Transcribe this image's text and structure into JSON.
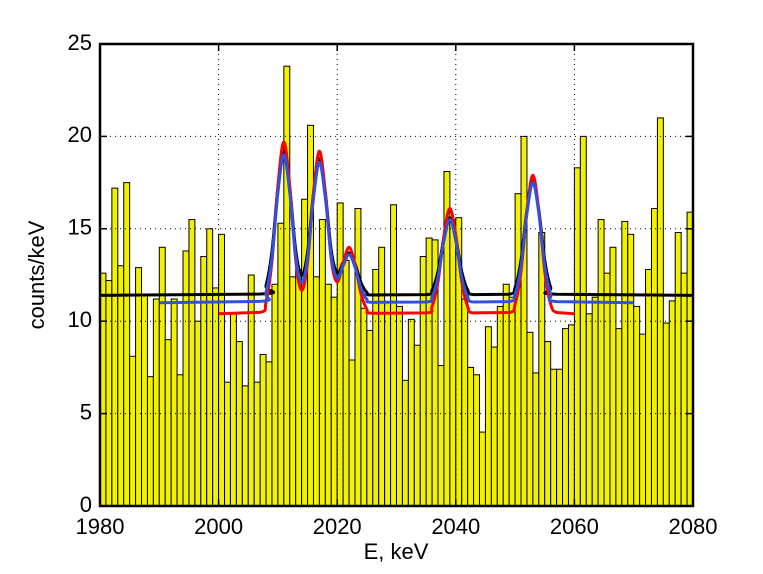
{
  "chart_data": {
    "type": "histogram",
    "xlabel": "E, keV",
    "ylabel": "counts/keV",
    "bins": [
      1980,
      1981,
      1982,
      1983,
      1984,
      1985,
      1986,
      1987,
      1988,
      1989,
      1990,
      1991,
      1992,
      1993,
      1994,
      1995,
      1996,
      1997,
      1998,
      1999,
      2000,
      2001,
      2002,
      2003,
      2004,
      2005,
      2006,
      2007,
      2008,
      2009,
      2010,
      2011,
      2012,
      2013,
      2014,
      2015,
      2016,
      2017,
      2018,
      2019,
      2020,
      2021,
      2022,
      2023,
      2024,
      2025,
      2026,
      2027,
      2028,
      2029,
      2030,
      2031,
      2032,
      2033,
      2034,
      2035,
      2036,
      2037,
      2038,
      2039,
      2040,
      2041,
      2042,
      2043,
      2044,
      2045,
      2046,
      2047,
      2048,
      2049,
      2050,
      2051,
      2052,
      2053,
      2054,
      2055,
      2056,
      2057,
      2058,
      2059,
      2060,
      2061,
      2062,
      2063,
      2064,
      2065,
      2066,
      2067,
      2068,
      2069,
      2070,
      2071,
      2072,
      2073,
      2074,
      2075,
      2076,
      2077,
      2078,
      2079,
      2080
    ],
    "values": [
      12.6,
      12.2,
      17.2,
      13.0,
      17.5,
      8.1,
      12.9,
      11.4,
      7.0,
      11.2,
      14.0,
      9.0,
      11.2,
      7.1,
      13.8,
      15.5,
      10.0,
      13.5,
      15.0,
      11.8,
      14.7,
      6.7,
      10.4,
      8.9,
      6.5,
      12.5,
      6.7,
      8.2,
      7.8,
      12.0,
      15.3,
      23.8,
      12.4,
      12.8,
      16.6,
      20.6,
      12.4,
      15.5,
      12.0,
      11.3,
      16.4,
      13.3,
      7.9,
      16.1,
      10.7,
      9.5,
      12.8,
      14.0,
      11.0,
      16.3,
      10.8,
      6.8,
      10.1,
      8.7,
      13.5,
      14.5,
      14.4,
      7.6,
      18.1,
      15.5,
      15.6,
      11.2,
      7.5,
      7.1,
      4.0,
      9.7,
      8.6,
      10.8,
      12.0,
      11.3,
      16.9,
      20.0,
      9.4,
      7.2,
      14.8,
      8.9,
      7.4,
      7.4,
      9.6,
      9.8,
      18.3,
      20.0,
      10.4,
      11.3,
      15.5,
      12.6,
      14.0,
      9.6,
      15.4,
      14.7,
      10.8,
      9.3,
      12.8,
      16.1,
      21.0,
      9.9,
      11.1,
      14.8,
      12.6,
      15.9
    ],
    "color": "#f2f200",
    "fits": [
      {
        "color": "#000000",
        "x": [
          1980,
          2007,
          2008,
          2009,
          2010,
          2011,
          2012,
          2013,
          2014,
          2015,
          2016,
          2017,
          2018,
          2019,
          2020,
          2021,
          2022,
          2023,
          2024,
          2025,
          2026,
          2035,
          2036,
          2037,
          2038,
          2039,
          2040,
          2041,
          2042,
          2043,
          2049,
          2050,
          2051,
          2052,
          2053,
          2054,
          2055,
          2056,
          2057,
          2080
        ],
        "values": [
          11.4,
          11.47,
          11.95,
          13.79,
          17.2,
          19.2,
          17.2,
          13.86,
          12.47,
          13.73,
          16.91,
          18.8,
          16.93,
          13.82,
          12.62,
          13.18,
          13.7,
          13.11,
          12.1,
          11.56,
          11.42,
          11.44,
          11.69,
          12.69,
          14.52,
          15.6,
          14.52,
          12.69,
          11.69,
          11.44,
          11.46,
          11.83,
          13.3,
          16.01,
          17.6,
          16.01,
          13.3,
          11.83,
          11.46,
          11.4
        ]
      },
      {
        "color": "#ff0000",
        "x": [
          2000,
          2007,
          2008,
          2009,
          2010,
          2011,
          2012,
          2013,
          2014,
          2015,
          2016,
          2017,
          2018,
          2019,
          2020,
          2021,
          2022,
          2023,
          2024,
          2025,
          2026,
          2035,
          2036,
          2037,
          2038,
          2039,
          2040,
          2041,
          2042,
          2043,
          2049,
          2050,
          2051,
          2052,
          2053,
          2054,
          2055,
          2056,
          2057,
          2060
        ],
        "values": [
          10.4,
          10.48,
          11.05,
          13.25,
          17.32,
          19.7,
          17.32,
          13.33,
          11.67,
          13.17,
          16.95,
          19.2,
          16.98,
          13.34,
          12.12,
          13.16,
          14.0,
          13.08,
          11.5,
          10.65,
          10.43,
          10.45,
          10.8,
          12.14,
          14.64,
          16.1,
          14.64,
          12.14,
          10.8,
          10.45,
          10.47,
          10.93,
          12.7,
          15.98,
          17.9,
          15.98,
          12.7,
          10.93,
          10.47,
          10.4
        ]
      },
      {
        "color": "#3050e0",
        "x": [
          1990,
          2007,
          2008,
          2009,
          2010,
          2011,
          2012,
          2013,
          2014,
          2015,
          2016,
          2017,
          2018,
          2019,
          2020,
          2021,
          2022,
          2023,
          2024,
          2025,
          2026,
          2035,
          2036,
          2037,
          2038,
          2039,
          2040,
          2041,
          2042,
          2043,
          2049,
          2050,
          2051,
          2052,
          2053,
          2054,
          2055,
          2056,
          2057,
          2070
        ],
        "values": [
          11.0,
          11.07,
          11.56,
          13.45,
          16.95,
          19.0,
          16.95,
          13.52,
          12.09,
          13.4,
          16.65,
          18.6,
          16.67,
          13.51,
          12.33,
          13.0,
          13.6,
          12.93,
          11.8,
          11.18,
          11.02,
          11.04,
          11.32,
          12.38,
          14.35,
          15.5,
          14.35,
          12.38,
          11.32,
          11.04,
          11.06,
          11.46,
          12.99,
          15.84,
          17.5,
          15.84,
          12.99,
          11.46,
          11.06,
          11.0
        ]
      }
    ],
    "xlim": [
      1980,
      2080
    ],
    "xticks": [
      1980,
      2000,
      2020,
      2040,
      2060,
      2080
    ],
    "ylim": [
      0,
      25
    ],
    "yticks": [
      0,
      5,
      10,
      15,
      20,
      25
    ],
    "grid": true
  }
}
